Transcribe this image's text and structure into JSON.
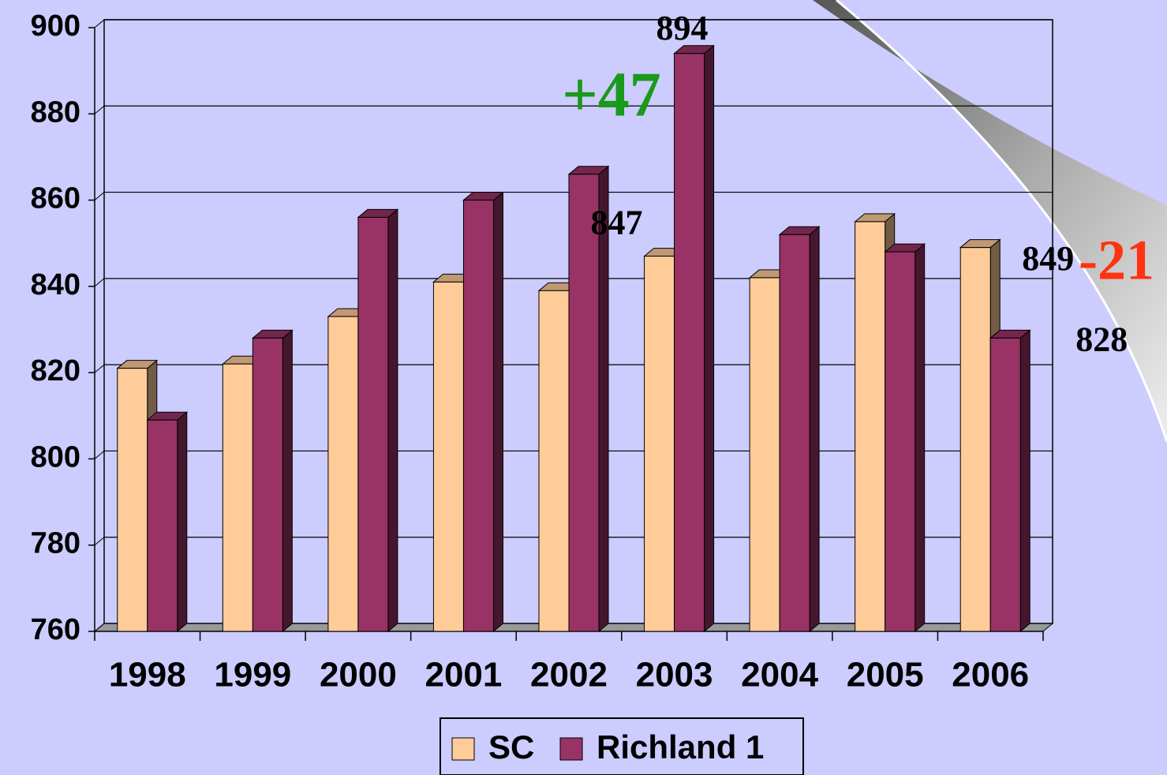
{
  "chart_data": {
    "type": "bar",
    "categories": [
      "1998",
      "1999",
      "2000",
      "2001",
      "2002",
      "2003",
      "2004",
      "2005",
      "2006"
    ],
    "series": [
      {
        "name": "SC",
        "color": "#ffcc99",
        "values": [
          821,
          822,
          833,
          841,
          839,
          847,
          842,
          855,
          849
        ],
        "value_labels": [
          null,
          null,
          null,
          null,
          null,
          "847",
          null,
          null,
          "849"
        ]
      },
      {
        "name": "Richland 1",
        "color": "#993366",
        "values": [
          809,
          828,
          856,
          860,
          866,
          894,
          852,
          848,
          828
        ],
        "value_labels": [
          null,
          null,
          null,
          null,
          null,
          "894",
          null,
          null,
          "828"
        ]
      }
    ],
    "ylim": [
      760,
      900
    ],
    "yticks": [
      760,
      780,
      800,
      820,
      840,
      860,
      880,
      900
    ],
    "grid": true,
    "annotations": [
      {
        "text": "+47",
        "color": "#1a991a"
      },
      {
        "text": "-21",
        "color": "#ff3311"
      }
    ],
    "legend": "bottom"
  }
}
